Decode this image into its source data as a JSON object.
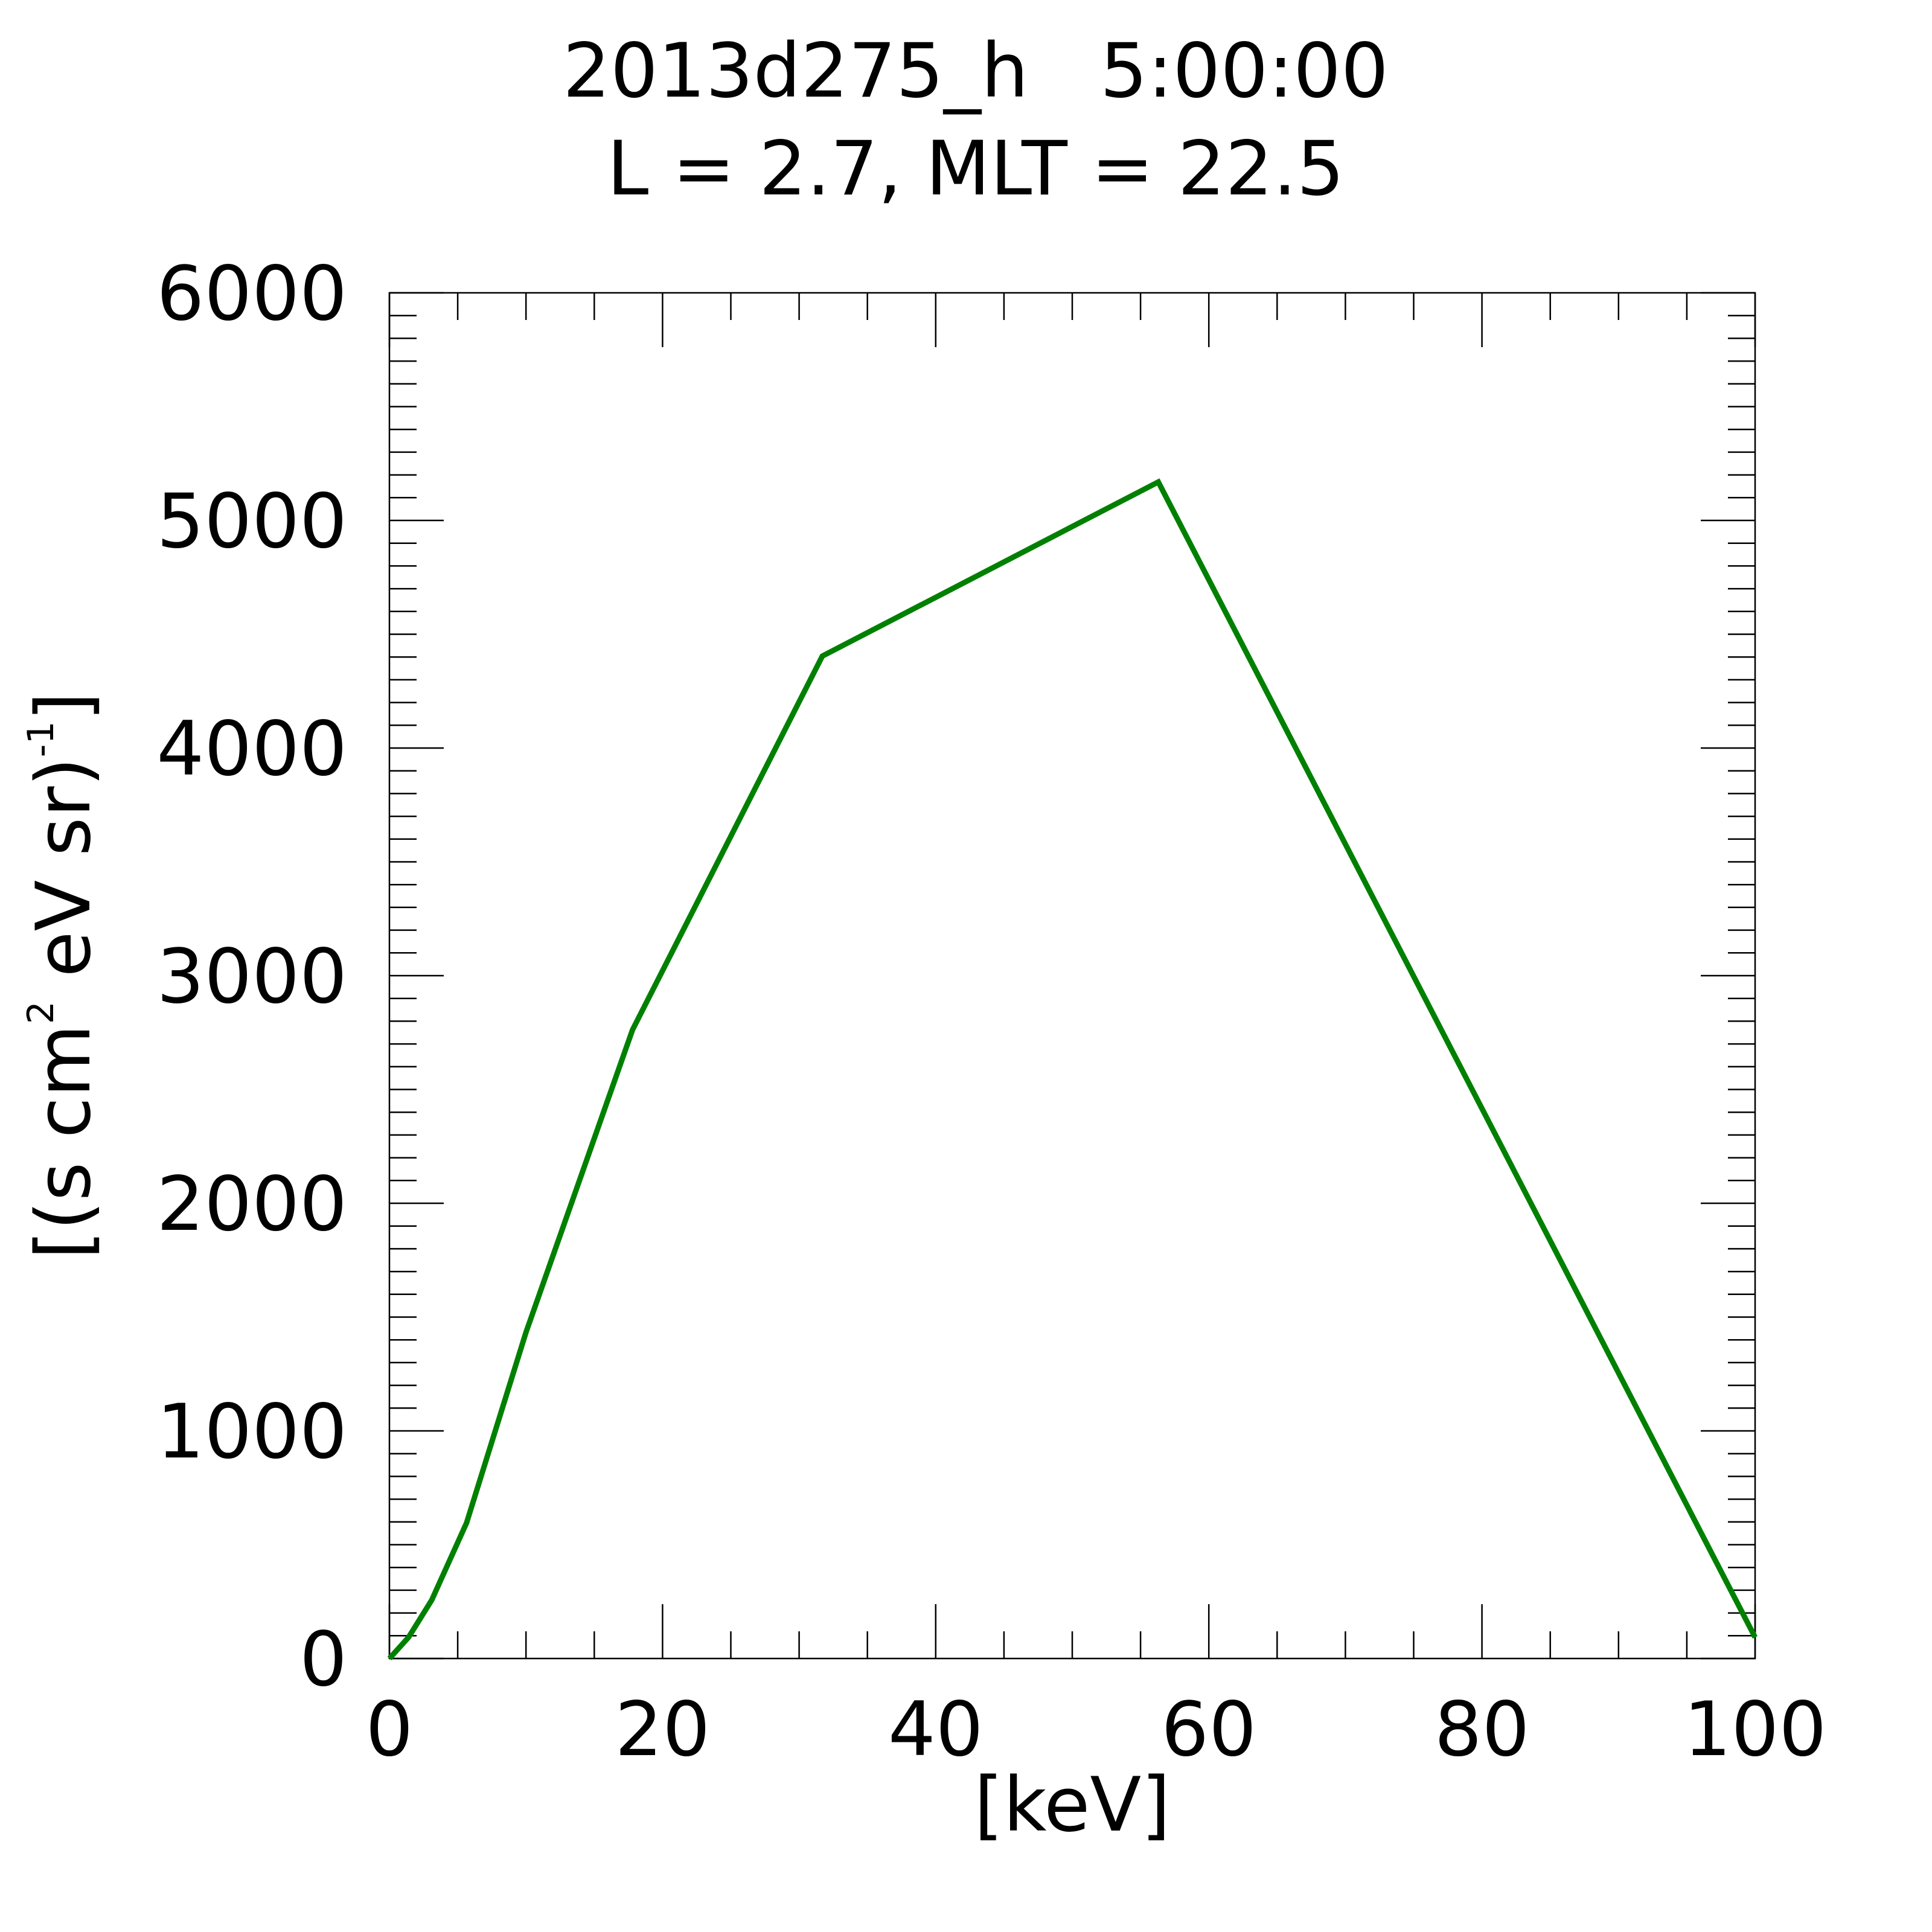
{
  "chart_data": {
    "type": "line",
    "title": "2013d275_h   5:00:00",
    "subtitle": "L = 2.7, MLT = 22.5",
    "xlabel": "[keV]",
    "ylabel": [
      "[(s cm",
      "2",
      " eV sr)",
      "-1",
      "]"
    ],
    "series": [
      {
        "color": "#008000",
        "x": [
          0,
          1.4,
          3.1,
          5.65,
          10.0,
          17.8,
          31.7,
          56.3,
          100
        ],
        "values": [
          0,
          93,
          257,
          596,
          1433,
          2762,
          4404,
          5169,
          93
        ]
      }
    ],
    "xlim": [
      0,
      100
    ],
    "xticks": [
      0,
      20,
      40,
      60,
      80,
      100
    ],
    "ylim": [
      0,
      6000
    ],
    "yticks": [
      0,
      1000,
      2000,
      3000,
      4000,
      5000,
      6000
    ]
  }
}
